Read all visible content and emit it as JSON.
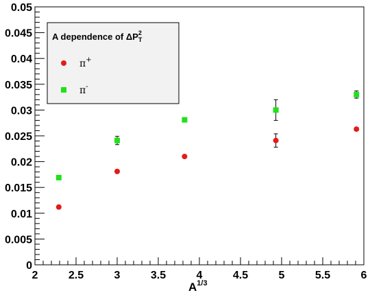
{
  "chart_data": {
    "type": "scatter",
    "title": "",
    "xlabel": "A",
    "xlabel_superscript": "1/3",
    "ylabel": "",
    "xlim": [
      2,
      6
    ],
    "ylim": [
      0,
      0.05
    ],
    "grid": false,
    "x_ticks": [
      {
        "value": 2,
        "label": "2"
      },
      {
        "value": 2.5,
        "label": "2.5"
      },
      {
        "value": 3,
        "label": "3"
      },
      {
        "value": 3.5,
        "label": "3.5"
      },
      {
        "value": 4,
        "label": "4"
      },
      {
        "value": 4.5,
        "label": "4.5"
      },
      {
        "value": 5,
        "label": "5"
      },
      {
        "value": 5.5,
        "label": "5.5"
      },
      {
        "value": 6,
        "label": "6"
      }
    ],
    "y_ticks": [
      {
        "value": 0,
        "label": "0"
      },
      {
        "value": 0.005,
        "label": "0.005"
      },
      {
        "value": 0.01,
        "label": "0.01"
      },
      {
        "value": 0.015,
        "label": "0.015"
      },
      {
        "value": 0.02,
        "label": "0.02"
      },
      {
        "value": 0.025,
        "label": "0.025"
      },
      {
        "value": 0.03,
        "label": "0.03"
      },
      {
        "value": 0.035,
        "label": "0.035"
      },
      {
        "value": 0.04,
        "label": "0.04"
      },
      {
        "value": 0.045,
        "label": "0.045"
      },
      {
        "value": 0.05,
        "label": "0.05"
      }
    ],
    "legend": {
      "placement": "top-left",
      "title_prefix": "A dependence of ",
      "title_symbol": "ΔP",
      "title_superscript": "2",
      "title_subscript": "T"
    },
    "series": [
      {
        "name": "π",
        "name_superscript": "+",
        "marker": "circle",
        "color": "#e31b1b",
        "points": [
          {
            "x": 2.29,
            "y": 0.0112,
            "err": 0.0003
          },
          {
            "x": 3.0,
            "y": 0.0181,
            "err": 0.0003
          },
          {
            "x": 3.82,
            "y": 0.021,
            "err": 0.0003
          },
          {
            "x": 4.93,
            "y": 0.0241,
            "err": 0.0013
          },
          {
            "x": 5.91,
            "y": 0.0263,
            "err": 0.0003
          }
        ]
      },
      {
        "name": "π",
        "name_superscript": "-",
        "marker": "square",
        "color": "#22e01b",
        "points": [
          {
            "x": 2.29,
            "y": 0.0169,
            "err": 0.0003
          },
          {
            "x": 3.0,
            "y": 0.0241,
            "err": 0.0008
          },
          {
            "x": 3.82,
            "y": 0.0281,
            "err": 0.0003
          },
          {
            "x": 4.93,
            "y": 0.03,
            "err": 0.002
          },
          {
            "x": 5.91,
            "y": 0.033,
            "err": 0.0007
          }
        ]
      }
    ]
  }
}
